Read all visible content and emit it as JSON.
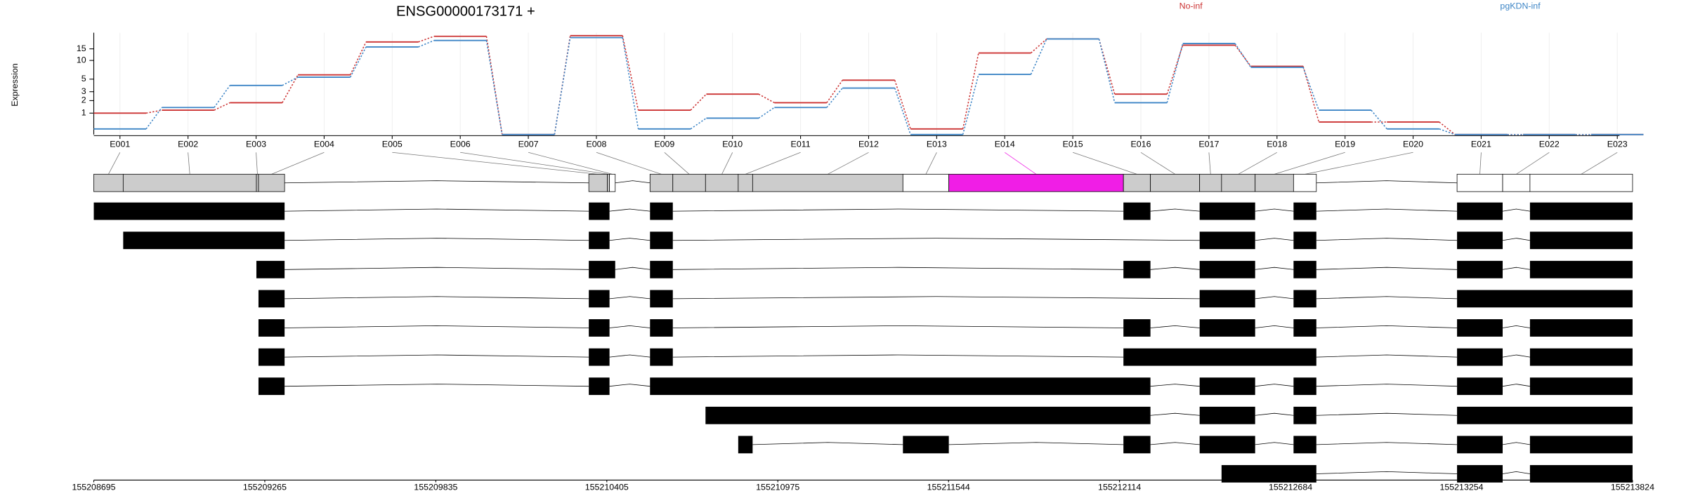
{
  "chart_data": {
    "type": "exon-usage",
    "title": "ENSG00000173171 +",
    "ylabel": "Expression",
    "yscale": "log2p1",
    "ylim": [
      0,
      26
    ],
    "yticks": [
      1,
      2,
      3,
      5,
      10,
      15
    ],
    "grid": true,
    "highlight_color": "#f01ee6",
    "highlight_exon": 13,
    "series": [
      {
        "name": "No-inf",
        "color": "#cc3333",
        "values": [
          1,
          1.2,
          1.8,
          5.9,
          19,
          23,
          0,
          23.5,
          1.2,
          2.7,
          1.8,
          4.8,
          0.2,
          13,
          21,
          2.7,
          17,
          8.1,
          0.5,
          0.5,
          0,
          0,
          0
        ]
      },
      {
        "name": "pgKDN-inf",
        "color": "#3d85c6",
        "values": [
          0.2,
          1.4,
          3.9,
          5.4,
          16,
          20,
          0,
          22,
          0.2,
          0.7,
          1.4,
          3.5,
          0,
          6,
          21,
          1.8,
          18,
          7.8,
          1.2,
          0.2,
          0,
          0,
          0
        ]
      }
    ],
    "exons": [
      {
        "name": "E001",
        "start": 155208695,
        "end": 155208793
      },
      {
        "name": "E002",
        "start": 155208793,
        "end": 155209237
      },
      {
        "name": "E003",
        "start": 155209237,
        "end": 155209244
      },
      {
        "name": "E004",
        "start": 155209244,
        "end": 155209331
      },
      {
        "name": "E005",
        "start": 155210345,
        "end": 155210407
      },
      {
        "name": "E006",
        "start": 155210407,
        "end": 155210414
      },
      {
        "name": "E007",
        "start": 155210414,
        "end": 155210433
      },
      {
        "name": "E008",
        "start": 155210549,
        "end": 155210625
      },
      {
        "name": "E009",
        "start": 155210625,
        "end": 155210734
      },
      {
        "name": "E010",
        "start": 155210734,
        "end": 155210843
      },
      {
        "name": "E011",
        "start": 155210843,
        "end": 155210891
      },
      {
        "name": "E012",
        "start": 155210891,
        "end": 155211392
      },
      {
        "name": "E013",
        "start": 155211392,
        "end": 155211545
      },
      {
        "name": "E014",
        "start": 155211545,
        "end": 155212127
      },
      {
        "name": "E015",
        "start": 155212127,
        "end": 155212217
      },
      {
        "name": "E016",
        "start": 155212217,
        "end": 155212381
      },
      {
        "name": "E017",
        "start": 155212381,
        "end": 155212454
      },
      {
        "name": "E018",
        "start": 155212454,
        "end": 155212566
      },
      {
        "name": "E019",
        "start": 155212566,
        "end": 155212694
      },
      {
        "name": "E020",
        "start": 155212694,
        "end": 155212770
      },
      {
        "name": "E021",
        "start": 155213239,
        "end": 155213391
      },
      {
        "name": "E022",
        "start": 155213391,
        "end": 155213482
      },
      {
        "name": "E023",
        "start": 155213482,
        "end": 155213824
      }
    ],
    "exon_colors": [
      "#cccccc",
      "#cccccc",
      "#cccccc",
      "#cccccc",
      "#cccccc",
      "#cccccc",
      "#ffffff",
      "#cccccc",
      "#cccccc",
      "#cccccc",
      "#cccccc",
      "#cccccc",
      "#ffffff",
      "#cccccc",
      "#cccccc",
      "#cccccc",
      "#cccccc",
      "#cccccc",
      "#cccccc",
      "#ffffff",
      "#ffffff",
      "#ffffff",
      "#ffffff"
    ],
    "transcripts": [
      [
        [
          0,
          3
        ],
        [
          4,
          5
        ],
        [
          7,
          7
        ],
        [
          14,
          14
        ],
        [
          16,
          17
        ],
        [
          19,
          19
        ],
        [
          20,
          20
        ],
        [
          22,
          22
        ]
      ],
      [
        [
          1,
          3
        ],
        [
          4,
          5
        ],
        [
          7,
          7
        ],
        [
          16,
          17
        ],
        [
          19,
          19
        ],
        [
          20,
          20
        ],
        [
          22,
          22
        ]
      ],
      [
        [
          2,
          3
        ],
        [
          4,
          6
        ],
        [
          7,
          7
        ],
        [
          14,
          14
        ],
        [
          16,
          17
        ],
        [
          19,
          19
        ],
        [
          20,
          20
        ],
        [
          22,
          22
        ]
      ],
      [
        [
          3,
          3
        ],
        [
          4,
          5
        ],
        [
          7,
          7
        ],
        [
          16,
          17
        ],
        [
          19,
          19
        ],
        [
          20,
          22
        ]
      ],
      [
        [
          3,
          3
        ],
        [
          4,
          5
        ],
        [
          7,
          7
        ],
        [
          14,
          14
        ],
        [
          16,
          17
        ],
        [
          19,
          19
        ],
        [
          20,
          20
        ],
        [
          22,
          22
        ]
      ],
      [
        [
          3,
          3
        ],
        [
          4,
          5
        ],
        [
          7,
          7
        ],
        [
          14,
          19
        ],
        [
          20,
          20
        ],
        [
          22,
          22
        ]
      ],
      [
        [
          3,
          3
        ],
        [
          4,
          5
        ],
        [
          7,
          14
        ],
        [
          16,
          17
        ],
        [
          19,
          19
        ],
        [
          20,
          20
        ],
        [
          22,
          22
        ]
      ],
      [
        [
          9,
          14
        ],
        [
          16,
          17
        ],
        [
          19,
          19
        ],
        [
          20,
          22
        ]
      ],
      [
        [
          10,
          10
        ],
        [
          12,
          12
        ],
        [
          14,
          14
        ],
        [
          16,
          17
        ],
        [
          19,
          19
        ],
        [
          20,
          20
        ],
        [
          22,
          22
        ]
      ],
      [
        [
          17,
          19
        ],
        [
          20,
          20
        ],
        [
          22,
          22
        ]
      ]
    ],
    "xlim": [
      155208695,
      155213824
    ],
    "xticks": [
      155208695,
      155209265,
      155209835,
      155210405,
      155210975,
      155211544,
      155212114,
      155212684,
      155213254,
      155213824
    ]
  }
}
